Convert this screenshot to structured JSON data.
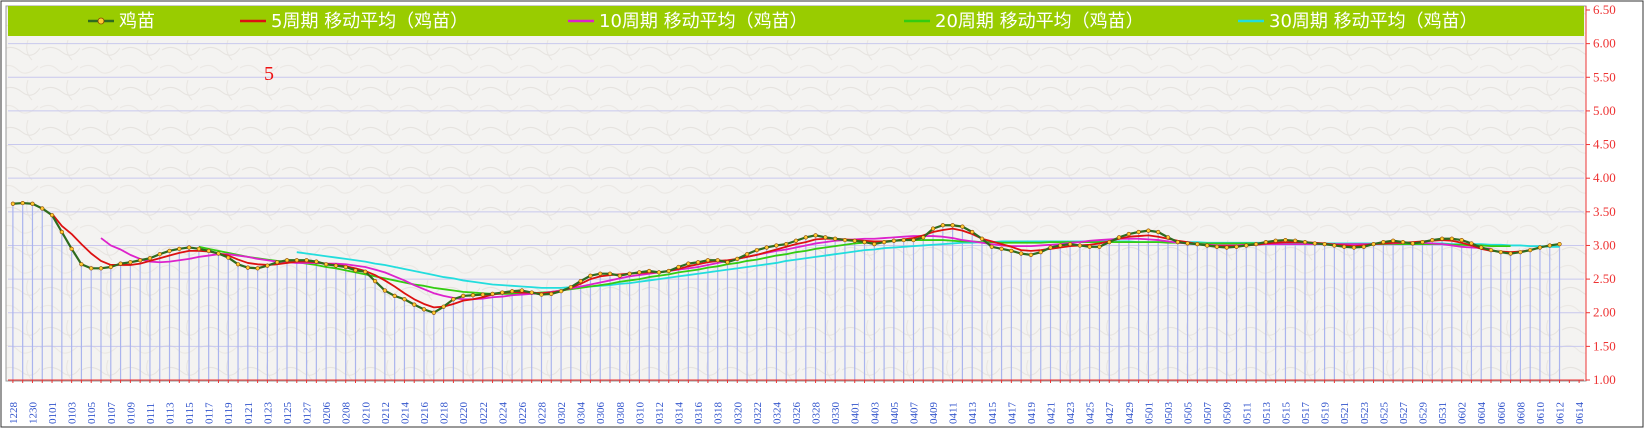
{
  "chart_data": {
    "type": "line",
    "ylim": [
      1.0,
      6.5
    ],
    "yticks": [
      "1.00",
      "1.50",
      "2.00",
      "2.50",
      "3.00",
      "3.50",
      "4.00",
      "4.50",
      "5.00",
      "5.50",
      "6.00",
      "6.50"
    ],
    "annotation": "5",
    "x_dates": [
      "1228",
      "1229",
      "1230",
      "1231",
      "0101",
      "0102",
      "0103",
      "0104",
      "0105",
      "0106",
      "0107",
      "0108",
      "0109",
      "0110",
      "0111",
      "0112",
      "0113",
      "0114",
      "0115",
      "0116",
      "0117",
      "0118",
      "0119",
      "0120",
      "0121",
      "0122",
      "0123",
      "0124",
      "0125",
      "0126",
      "0127",
      "0128",
      "0206",
      "0207",
      "0208",
      "0209",
      "0210",
      "0211",
      "0212",
      "0213",
      "0214",
      "0215",
      "0216",
      "0217",
      "0218",
      "0219",
      "0220",
      "0221",
      "0222",
      "0223",
      "0224",
      "0225",
      "0226",
      "0227",
      "0228",
      "0301",
      "0302",
      "0303",
      "0304",
      "0305",
      "0306",
      "0307",
      "0308",
      "0309",
      "0310",
      "0311",
      "0312",
      "0313",
      "0314",
      "0315",
      "0316",
      "0317",
      "0318",
      "0319",
      "0320",
      "0321",
      "0322",
      "0323",
      "0324",
      "0325",
      "0326",
      "0327",
      "0328",
      "0329",
      "0330",
      "0331",
      "0401",
      "0402",
      "0403",
      "0404",
      "0405",
      "0406",
      "0407",
      "0408",
      "0409",
      "0410",
      "0411",
      "0412",
      "0413",
      "0414",
      "0415",
      "0416",
      "0417",
      "0418",
      "0419",
      "0420",
      "0421",
      "0422",
      "0423",
      "0424",
      "0425",
      "0426",
      "0427",
      "0428",
      "0429",
      "0430",
      "0501",
      "0502",
      "0503",
      "0504",
      "0505",
      "0506",
      "0507",
      "0508",
      "0509",
      "0510",
      "0511",
      "0512",
      "0513",
      "0514",
      "0515",
      "0516",
      "0517",
      "0518",
      "0519",
      "0520",
      "0521",
      "0522",
      "0523",
      "0524",
      "0525",
      "0526",
      "0527",
      "0528",
      "0529",
      "0530",
      "0531",
      "0601",
      "0602",
      "0603",
      "0604",
      "0605",
      "0606",
      "0607",
      "0608",
      "0609",
      "0610",
      "0611",
      "0612",
      "0613",
      "0614"
    ],
    "x_tick_labels": [
      "1228",
      "1230",
      "0101",
      "0103",
      "0105",
      "0107",
      "0109",
      "0111",
      "0113",
      "0115",
      "0117",
      "0119",
      "0121",
      "0123",
      "0125",
      "0127",
      "0206",
      "0208",
      "0210",
      "0212",
      "0214",
      "0216",
      "0218",
      "0220",
      "0222",
      "0224",
      "0226",
      "0228",
      "0302",
      "0304",
      "0306",
      "0308",
      "0310",
      "0312",
      "0314",
      "0316",
      "0318",
      "0320",
      "0322",
      "0324",
      "0326",
      "0328",
      "0330",
      "0401",
      "0403",
      "0405",
      "0407",
      "0409",
      "0411",
      "0413",
      "0415",
      "0417",
      "0419",
      "0421",
      "0423",
      "0425",
      "0427",
      "0429",
      "0501",
      "0503",
      "0505",
      "0507",
      "0509",
      "0511",
      "0513",
      "0515",
      "0517",
      "0519",
      "0521",
      "0523",
      "0525",
      "0527",
      "0529",
      "0531",
      "0602",
      "0604",
      "0606",
      "0608",
      "0610",
      "0612",
      "0614"
    ],
    "series": [
      {
        "name": "鸡苗",
        "color": "#2e6b1f",
        "values": [
          3.62,
          3.63,
          3.62,
          3.55,
          3.45,
          3.2,
          2.95,
          2.72,
          2.66,
          2.66,
          2.68,
          2.73,
          2.75,
          2.78,
          2.81,
          2.87,
          2.92,
          2.95,
          2.97,
          2.95,
          2.92,
          2.88,
          2.82,
          2.72,
          2.67,
          2.66,
          2.7,
          2.75,
          2.78,
          2.78,
          2.78,
          2.76,
          2.72,
          2.7,
          2.68,
          2.63,
          2.61,
          2.47,
          2.33,
          2.25,
          2.2,
          2.12,
          2.05,
          2.0,
          2.09,
          2.2,
          2.25,
          2.26,
          2.27,
          2.28,
          2.3,
          2.32,
          2.33,
          2.3,
          2.27,
          2.28,
          2.32,
          2.38,
          2.47,
          2.55,
          2.58,
          2.58,
          2.55,
          2.58,
          2.6,
          2.62,
          2.6,
          2.62,
          2.68,
          2.73,
          2.75,
          2.78,
          2.78,
          2.75,
          2.8,
          2.87,
          2.93,
          2.97,
          3.0,
          3.02,
          3.07,
          3.12,
          3.15,
          3.12,
          3.1,
          3.08,
          3.07,
          3.05,
          3.02,
          3.05,
          3.07,
          3.08,
          3.08,
          3.12,
          3.25,
          3.3,
          3.3,
          3.28,
          3.2,
          3.1,
          2.98,
          2.95,
          2.92,
          2.88,
          2.86,
          2.9,
          2.97,
          3.0,
          3.02,
          3.0,
          2.98,
          2.98,
          3.05,
          3.12,
          3.17,
          3.2,
          3.22,
          3.2,
          3.12,
          3.05,
          3.03,
          3.02,
          3.0,
          2.98,
          2.97,
          2.98,
          3.0,
          3.02,
          3.05,
          3.07,
          3.08,
          3.07,
          3.05,
          3.03,
          3.02,
          3.0,
          2.98,
          2.97,
          2.98,
          3.02,
          3.05,
          3.07,
          3.05,
          3.03,
          3.05,
          3.08,
          3.1,
          3.1,
          3.08,
          3.03,
          2.97,
          2.93,
          2.9,
          2.88,
          2.9,
          2.93,
          2.97,
          3.0,
          3.02
        ]
      },
      {
        "name": "5周期 移动平均（鸡苗）",
        "color": "#dd1111",
        "values": [
          null,
          null,
          null,
          null,
          3.47,
          3.29,
          3.17,
          3.02,
          2.88,
          2.77,
          2.71,
          2.71,
          2.71,
          2.73,
          2.77,
          2.81,
          2.85,
          2.89,
          2.92,
          2.92,
          2.91,
          2.88,
          2.85,
          2.79,
          2.74,
          2.72,
          2.71,
          2.72,
          2.74,
          2.76,
          2.76,
          2.75,
          2.73,
          2.71,
          2.69,
          2.66,
          2.62,
          2.56,
          2.48,
          2.39,
          2.29,
          2.2,
          2.13,
          2.08,
          2.09,
          2.13,
          2.18,
          2.2,
          2.23,
          2.27,
          2.29,
          2.31,
          2.3,
          2.3,
          2.29,
          2.3,
          2.32,
          2.37,
          2.43,
          2.5,
          2.54,
          2.56,
          2.57,
          2.58,
          2.59,
          2.6,
          2.6,
          2.62,
          2.65,
          2.69,
          2.72,
          2.75,
          2.77,
          2.78,
          2.8,
          2.83,
          2.86,
          2.9,
          2.94,
          2.98,
          3.02,
          3.05,
          3.09,
          3.1,
          3.1,
          3.09,
          3.08,
          3.07,
          3.06,
          3.06,
          3.07,
          3.09,
          3.11,
          3.15,
          3.2,
          3.23,
          3.25,
          3.22,
          3.17,
          3.1,
          3.06,
          3.02,
          2.98,
          2.93,
          2.92,
          2.93,
          2.95,
          2.97,
          2.99,
          3.0,
          3.01,
          3.03,
          3.06,
          3.1,
          3.13,
          3.14,
          3.15,
          3.13,
          3.1,
          3.07,
          3.05,
          3.02,
          3.0,
          2.99,
          2.99,
          2.99,
          3.0,
          3.01,
          3.03,
          3.04,
          3.05,
          3.05,
          3.05,
          3.04,
          3.03,
          3.01,
          3.0,
          2.99,
          3.0,
          3.02,
          3.03,
          3.04,
          3.04,
          3.05,
          3.06,
          3.07,
          3.08,
          3.07,
          3.04,
          3.0,
          2.95,
          2.92,
          2.91,
          2.9,
          2.91,
          2.93
        ]
      },
      {
        "name": "10周期 移动平均（鸡苗）",
        "color": "#dd22cc",
        "values": [
          null,
          null,
          null,
          null,
          null,
          null,
          null,
          null,
          null,
          3.11,
          3.0,
          2.94,
          2.86,
          2.8,
          2.76,
          2.75,
          2.76,
          2.78,
          2.8,
          2.83,
          2.85,
          2.87,
          2.87,
          2.85,
          2.83,
          2.8,
          2.78,
          2.76,
          2.75,
          2.74,
          2.74,
          2.74,
          2.73,
          2.73,
          2.72,
          2.7,
          2.68,
          2.64,
          2.6,
          2.54,
          2.48,
          2.41,
          2.35,
          2.29,
          2.25,
          2.22,
          2.2,
          2.2,
          2.21,
          2.23,
          2.24,
          2.26,
          2.27,
          2.28,
          2.29,
          2.31,
          2.33,
          2.36,
          2.39,
          2.42,
          2.45,
          2.48,
          2.51,
          2.54,
          2.56,
          2.58,
          2.6,
          2.62,
          2.64,
          2.66,
          2.68,
          2.71,
          2.74,
          2.77,
          2.8,
          2.83,
          2.86,
          2.89,
          2.92,
          2.94,
          2.97,
          3.0,
          3.03,
          3.05,
          3.07,
          3.08,
          3.09,
          3.1,
          3.1,
          3.11,
          3.12,
          3.13,
          3.14,
          3.14,
          3.14,
          3.13,
          3.11,
          3.08,
          3.06,
          3.04,
          3.02,
          3.0,
          2.99,
          2.99,
          2.99,
          3.0,
          3.01,
          3.02,
          3.04,
          3.05,
          3.07,
          3.08,
          3.09,
          3.1,
          3.1,
          3.1,
          3.09,
          3.08,
          3.06,
          3.04,
          3.03,
          3.02,
          3.01,
          3.0,
          3.0,
          3.0,
          3.01,
          3.01,
          3.02,
          3.02,
          3.02,
          3.02,
          3.02,
          3.02,
          3.02,
          3.02,
          3.02,
          3.02,
          3.02,
          3.02,
          3.03,
          3.03,
          3.04,
          3.04,
          3.04,
          3.03,
          3.02,
          3.0,
          2.98,
          2.97,
          2.96,
          2.95
        ]
      },
      {
        "name": "20周期 移动平均（鸡苗）",
        "color": "#33cc11",
        "values": [
          null,
          null,
          null,
          null,
          null,
          null,
          null,
          null,
          null,
          null,
          null,
          null,
          null,
          null,
          null,
          null,
          null,
          null,
          null,
          2.98,
          2.95,
          2.92,
          2.89,
          2.86,
          2.83,
          2.81,
          2.79,
          2.77,
          2.76,
          2.75,
          2.73,
          2.71,
          2.68,
          2.66,
          2.63,
          2.6,
          2.57,
          2.54,
          2.51,
          2.48,
          2.45,
          2.42,
          2.4,
          2.37,
          2.35,
          2.33,
          2.31,
          2.3,
          2.29,
          2.28,
          2.28,
          2.28,
          2.28,
          2.29,
          2.3,
          2.31,
          2.33,
          2.35,
          2.37,
          2.39,
          2.41,
          2.43,
          2.46,
          2.48,
          2.5,
          2.53,
          2.55,
          2.57,
          2.6,
          2.62,
          2.64,
          2.67,
          2.69,
          2.72,
          2.74,
          2.77,
          2.79,
          2.82,
          2.85,
          2.87,
          2.9,
          2.92,
          2.95,
          2.97,
          2.99,
          3.01,
          3.03,
          3.04,
          3.05,
          3.06,
          3.07,
          3.08,
          3.08,
          3.08,
          3.08,
          3.08,
          3.07,
          3.06,
          3.06,
          3.05,
          3.05,
          3.04,
          3.04,
          3.04,
          3.04,
          3.04,
          3.05,
          3.05,
          3.05,
          3.05,
          3.05,
          3.05,
          3.05,
          3.05,
          3.05,
          3.05,
          3.05,
          3.05,
          3.04,
          3.04,
          3.04,
          3.03,
          3.03,
          3.03,
          3.03,
          3.03,
          3.03,
          3.03,
          3.03,
          3.03,
          3.03,
          3.03,
          3.02,
          3.02,
          3.02,
          3.02,
          3.02,
          3.02,
          3.02,
          3.02,
          3.02,
          3.02,
          3.02,
          3.02,
          3.02,
          3.02,
          3.02,
          3.01,
          3.01,
          3.0,
          3.0,
          2.99,
          2.99,
          2.99
        ]
      },
      {
        "name": "30周期 移动平均（鸡苗）",
        "color": "#22dddd",
        "values": [
          null,
          null,
          null,
          null,
          null,
          null,
          null,
          null,
          null,
          null,
          null,
          null,
          null,
          null,
          null,
          null,
          null,
          null,
          null,
          null,
          null,
          null,
          null,
          null,
          null,
          null,
          null,
          null,
          null,
          2.9,
          2.88,
          2.86,
          2.84,
          2.82,
          2.8,
          2.78,
          2.76,
          2.73,
          2.71,
          2.68,
          2.65,
          2.62,
          2.59,
          2.56,
          2.53,
          2.51,
          2.48,
          2.46,
          2.44,
          2.42,
          2.41,
          2.4,
          2.39,
          2.38,
          2.37,
          2.37,
          2.37,
          2.38,
          2.38,
          2.39,
          2.4,
          2.41,
          2.43,
          2.44,
          2.46,
          2.48,
          2.5,
          2.52,
          2.54,
          2.56,
          2.58,
          2.6,
          2.62,
          2.64,
          2.66,
          2.68,
          2.7,
          2.72,
          2.74,
          2.77,
          2.79,
          2.81,
          2.83,
          2.85,
          2.87,
          2.89,
          2.91,
          2.93,
          2.94,
          2.96,
          2.97,
          2.98,
          2.99,
          3.0,
          3.01,
          3.02,
          3.03,
          3.04,
          3.04,
          3.05,
          3.05,
          3.06,
          3.06,
          3.06,
          3.06,
          3.06,
          3.06,
          3.06,
          3.06,
          3.06,
          3.06,
          3.06,
          3.06,
          3.06,
          3.06,
          3.05,
          3.05,
          3.05,
          3.05,
          3.05,
          3.05,
          3.05,
          3.04,
          3.04,
          3.04,
          3.04,
          3.04,
          3.04,
          3.04,
          3.04,
          3.04,
          3.04,
          3.04,
          3.03,
          3.03,
          3.03,
          3.03,
          3.03,
          3.03,
          3.03,
          3.03,
          3.03,
          3.03,
          3.03,
          3.03,
          3.03,
          3.03,
          3.02,
          3.02,
          3.02,
          3.02,
          3.01,
          3.01,
          3.0,
          3.0,
          2.99,
          2.99,
          2.98,
          2.98
        ]
      }
    ]
  }
}
